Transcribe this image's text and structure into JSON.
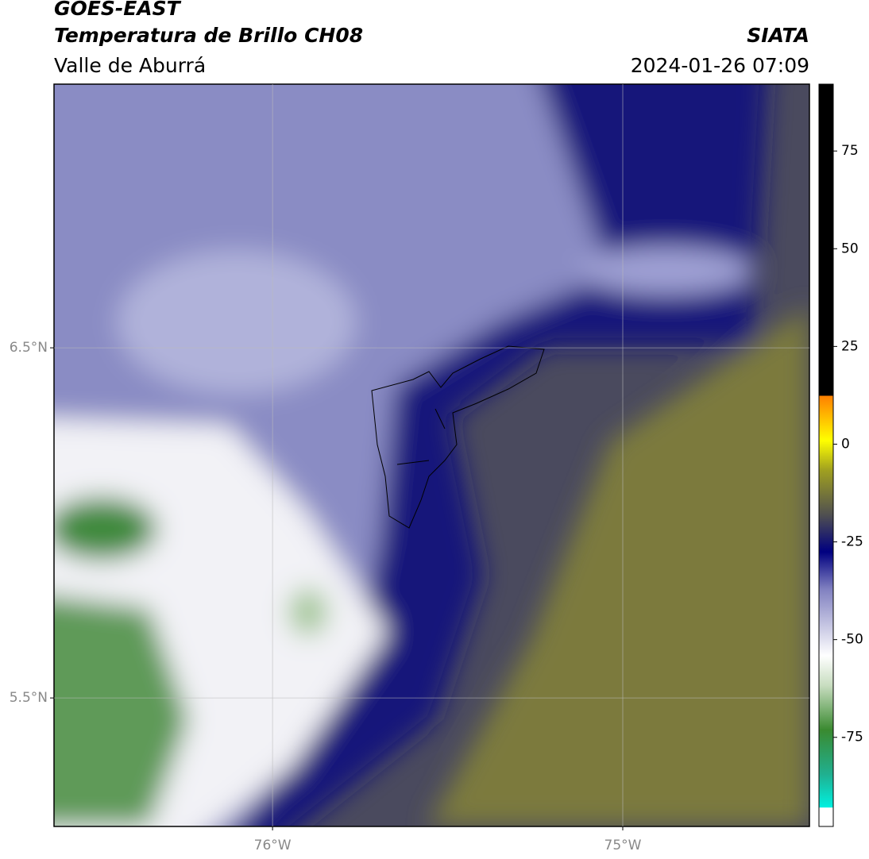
{
  "header": {
    "title": "GOES-EAST",
    "subtitle": "Temperatura de Brillo CH08",
    "source": "SIATA",
    "region": "Valle de Aburrá",
    "datetime": "2024-01-26 07:09"
  },
  "map": {
    "lat_range": [
      5.133,
      7.253
    ],
    "lon_range": [
      -76.624,
      -74.467
    ],
    "lat_labels": [
      {
        "value": 6.5,
        "label": "6.5°N"
      },
      {
        "value": 5.5,
        "label": "5.5°N"
      }
    ],
    "lon_labels": [
      {
        "value": -76,
        "label": "76°W"
      },
      {
        "value": -75,
        "label": "75°W"
      }
    ]
  },
  "colorbar": {
    "range": [
      -97.8,
      92.1
    ],
    "ticks": [
      75,
      50,
      25,
      0,
      -25,
      -50,
      -75
    ]
  }
}
